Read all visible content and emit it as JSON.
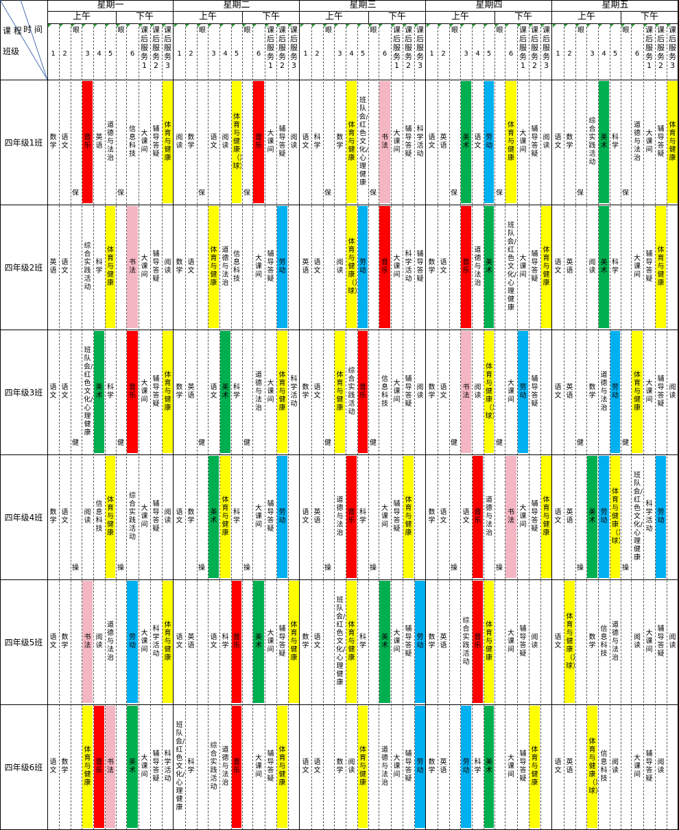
{
  "corner": {
    "time_label": "时 间",
    "course_label": "课 程",
    "class_label": "班级"
  },
  "days": [
    "星期一",
    "星期二",
    "星期三",
    "星期四",
    "星期五"
  ],
  "halves": [
    "上午",
    "下午"
  ],
  "period_labels": [
    "1",
    "2",
    "眼",
    "3",
    "4",
    "5",
    "眼",
    "6",
    "课后服务1",
    "课后服务2",
    "课后服务3"
  ],
  "service_labels": [
    "课后服务1",
    "课后服务2",
    "课后服务3"
  ],
  "break_labels": {
    "eye": "眼",
    "bao": "保",
    "jian": "健",
    "cao": "操"
  },
  "colors": {
    "music": "#ff0000",
    "art": "#00b050",
    "pe": "#ffff00",
    "calligraphy": "#f4b6c2",
    "labor": "#00b0f0",
    "none": "#ffffff"
  },
  "classes": [
    {
      "name": "四年级1班",
      "break_mark": "保",
      "days": [
        [
          "数学",
          "语文",
          "音乐",
          "英语",
          "道德与法治",
          "信息科技",
          "大课间",
          "辅导答疑",
          "体育与健康"
        ],
        [
          "阅读",
          "数学",
          "语文",
          "阅读",
          "体育与健康（足球）",
          "音乐",
          "大课间",
          "辅导答疑",
          "阅读"
        ],
        [
          "语文",
          "科学",
          "数学",
          "体育与健康",
          "班队会/红色文化/心理健康",
          "书法",
          "大课间",
          "辅导答疑",
          "科学活动"
        ],
        [
          "语文",
          "英语",
          "美术",
          "语文",
          "劳动",
          "体育与健康",
          "大课间",
          "辅导答疑",
          "阅读"
        ],
        [
          "语文",
          "数学",
          "综合实践活动",
          "美术",
          "科学",
          "道德与法治",
          "大课间",
          "辅导答疑",
          "体育与健康"
        ]
      ]
    },
    {
      "name": "四年级2班",
      "break_mark": "",
      "days": [
        [
          "英语",
          "语文",
          "综合实践活动",
          "科学",
          "体育与健康",
          "书法",
          "大课间",
          "辅导答疑",
          "阅读"
        ],
        [
          "数学",
          "语文",
          "体育与健康",
          "道德与法治",
          "信息科技",
          "大课间",
          "辅导答疑",
          "劳动"
        ],
        [
          "英语",
          "语文",
          "阅读",
          "体育与健康（足球）",
          "劳动",
          "音乐",
          "大课间",
          "科学活动",
          "辅导答疑"
        ],
        [
          "数学",
          "语文",
          "音乐",
          "道德与法治",
          "美术",
          "班队会/红色文化/心理健康",
          "大课间",
          "辅导答疑",
          "体育与健康"
        ],
        [
          "语文",
          "英语",
          "阅读",
          "美术",
          "科学",
          "大课间",
          "辅导答疑",
          "体育与健康"
        ]
      ]
    },
    {
      "name": "四年级3班",
      "break_mark": "健",
      "days": [
        [
          "语文",
          "语文",
          "班队会/红色文化/心理健康",
          "美术",
          "科学",
          "音乐",
          "大课间",
          "辅导答疑",
          "体育与健康"
        ],
        [
          "数学",
          "英语",
          "语文",
          "美术",
          "科学",
          "道德与法治",
          "大课间",
          "体育与健康",
          "科学活动"
        ],
        [
          "数学",
          "语文",
          "体育与健康",
          "综合实践活动",
          "音乐",
          "信息科技",
          "大课间",
          "辅导答疑",
          "阅读"
        ],
        [
          "数学",
          "语文",
          "书法",
          "阅读",
          "体育与健康（足球）",
          "大课间",
          "劳动",
          "辅导答疑"
        ],
        [
          "语文",
          "英语",
          "数学",
          "道德与法治",
          "劳动",
          "体育与健康",
          "大课间",
          "辅导答疑",
          "阅读"
        ]
      ]
    },
    {
      "name": "四年级4班",
      "break_mark": "操",
      "days": [
        [
          "数学",
          "语文",
          "阅读",
          "信息科技",
          "体育与健康",
          "综合实践活动",
          "大课间",
          "辅导答疑",
          "阅读"
        ],
        [
          "语文",
          "数学",
          "美术",
          "体育与健康",
          "科学",
          "大课间",
          "辅导答疑",
          "劳动"
        ],
        [
          "语文",
          "英语",
          "道德与法治",
          "音乐",
          "科学",
          "大课间",
          "辅导答疑",
          "体育与健康"
        ],
        [
          "数学",
          "语文",
          "语文",
          "音乐",
          "道德与法治",
          "书法",
          "大课间",
          "辅导答疑",
          "体育与健康"
        ],
        [
          "语文",
          "英语",
          "美术",
          "劳动",
          "体育与健康（足球）",
          "班队会/红色文化/心理健康",
          "科学活动",
          "劳动"
        ]
      ]
    },
    {
      "name": "四年级5班",
      "break_mark": "",
      "days": [
        [
          "语文",
          "数学",
          "书法",
          "阅读",
          "道德与法治",
          "劳动",
          "大课间",
          "科学活动",
          "体育与健康"
        ],
        [
          "语文",
          "英语",
          "语文",
          "科学",
          "音乐",
          "美术",
          "大课间",
          "辅导答疑",
          "体育与健康"
        ],
        [
          "数学",
          "语文",
          "班队会/红色文化/心理健康",
          "体育与健康",
          "科学",
          "美术",
          "大课间",
          "辅导答疑",
          "劳动"
        ],
        [
          "数学",
          "英语",
          "综合实践活动",
          "音乐",
          "体育与健康",
          "大课间",
          "辅导答疑",
          "阅读"
        ],
        [
          "语文",
          "体育与健康（足球）",
          "数学",
          "信息科技",
          "道德与法治",
          "阅读",
          "大课间",
          "辅导答疑",
          "阅读"
        ]
      ]
    },
    {
      "name": "四年级6班",
      "break_mark": "",
      "days": [
        [
          "语文",
          "数学",
          "体育与健康",
          "音乐",
          "书法",
          "美术",
          "大课间",
          "辅导答疑",
          "科学活动"
        ],
        [
          "班队会/红色文化/心理健康",
          "科学",
          "综合实践活动",
          "道德与法治",
          "音乐",
          "大课间",
          "辅导答疑",
          "体育与健康"
        ],
        [
          "语文",
          "语文",
          "数学",
          "阅读",
          "体育与健康",
          "道德与法治",
          "大课间",
          "辅导答疑",
          "劳动"
        ],
        [
          "数学",
          "英语",
          "劳动",
          "科学",
          "美术",
          "大课间",
          "辅导答疑",
          "体育与健康"
        ],
        [
          "语文",
          "英语",
          "体育与健康（足球）",
          "信息科技",
          "阅读",
          "大课间",
          "辅导答疑",
          "阅读"
        ]
      ]
    }
  ]
}
